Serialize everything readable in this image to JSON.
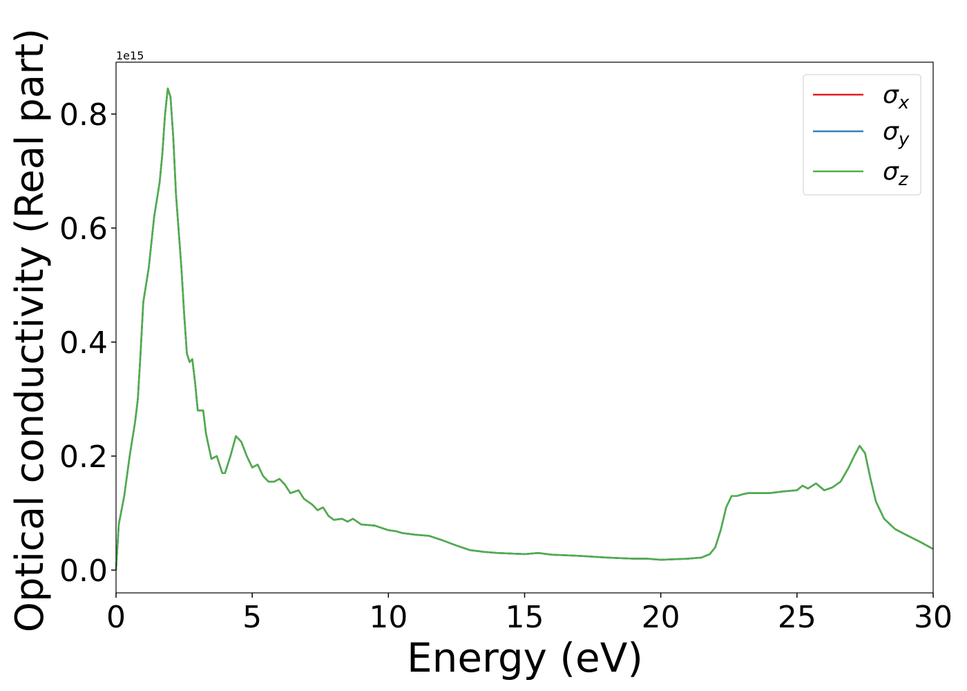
{
  "chart_data": {
    "type": "line",
    "xlabel": "Energy (eV)",
    "ylabel": "Optical conductivity (Real part)",
    "y_offset_label": "1e15",
    "x": [
      0,
      0.1,
      0.3,
      0.5,
      0.7,
      0.8,
      0.9,
      1.0,
      1.2,
      1.4,
      1.6,
      1.7,
      1.8,
      1.9,
      2.0,
      2.1,
      2.2,
      2.4,
      2.5,
      2.6,
      2.7,
      2.8,
      2.9,
      3.0,
      3.2,
      3.3,
      3.5,
      3.7,
      3.9,
      4.0,
      4.2,
      4.4,
      4.6,
      4.8,
      5.0,
      5.2,
      5.4,
      5.6,
      5.8,
      6.0,
      6.2,
      6.4,
      6.7,
      6.9,
      7.2,
      7.4,
      7.6,
      7.8,
      8.0,
      8.3,
      8.5,
      8.7,
      9.0,
      9.5,
      10.0,
      10.3,
      10.5,
      11.0,
      11.5,
      12.0,
      12.5,
      13.0,
      13.5,
      14,
      15,
      15.5,
      16,
      17,
      18,
      19,
      19.5,
      20,
      21,
      21.5,
      21.8,
      22.0,
      22.2,
      22.4,
      22.6,
      22.8,
      23.0,
      23.2,
      23.5,
      24,
      24.5,
      25,
      25.2,
      25.4,
      25.7,
      26.0,
      26.3,
      26.6,
      26.9,
      27.1,
      27.3,
      27.5,
      27.7,
      27.9,
      28.2,
      28.6,
      29.0,
      29.5,
      30.0
    ],
    "series": [
      {
        "name": "σx",
        "color": "#e41a1c",
        "values": [
          0.0,
          0.08,
          0.13,
          0.2,
          0.26,
          0.3,
          0.38,
          0.47,
          0.53,
          0.62,
          0.68,
          0.73,
          0.8,
          0.845,
          0.83,
          0.76,
          0.66,
          0.53,
          0.45,
          0.38,
          0.365,
          0.37,
          0.33,
          0.28,
          0.28,
          0.24,
          0.195,
          0.2,
          0.17,
          0.17,
          0.2,
          0.235,
          0.225,
          0.2,
          0.18,
          0.185,
          0.165,
          0.155,
          0.155,
          0.16,
          0.15,
          0.135,
          0.14,
          0.125,
          0.115,
          0.105,
          0.11,
          0.095,
          0.088,
          0.09,
          0.085,
          0.09,
          0.08,
          0.078,
          0.07,
          0.068,
          0.065,
          0.062,
          0.06,
          0.052,
          0.043,
          0.035,
          0.032,
          0.03,
          0.028,
          0.03,
          0.027,
          0.025,
          0.022,
          0.02,
          0.02,
          0.018,
          0.02,
          0.022,
          0.028,
          0.04,
          0.07,
          0.11,
          0.13,
          0.13,
          0.133,
          0.135,
          0.135,
          0.135,
          0.138,
          0.14,
          0.148,
          0.143,
          0.152,
          0.14,
          0.145,
          0.155,
          0.18,
          0.2,
          0.218,
          0.205,
          0.16,
          0.12,
          0.09,
          0.072,
          0.062,
          0.05,
          0.037
        ]
      },
      {
        "name": "σy",
        "color": "#377eb8",
        "values": [
          0.0,
          0.08,
          0.13,
          0.2,
          0.26,
          0.3,
          0.38,
          0.47,
          0.53,
          0.62,
          0.68,
          0.73,
          0.8,
          0.845,
          0.83,
          0.76,
          0.66,
          0.53,
          0.45,
          0.38,
          0.365,
          0.37,
          0.33,
          0.28,
          0.28,
          0.24,
          0.195,
          0.2,
          0.17,
          0.17,
          0.2,
          0.235,
          0.225,
          0.2,
          0.18,
          0.185,
          0.165,
          0.155,
          0.155,
          0.16,
          0.15,
          0.135,
          0.14,
          0.125,
          0.115,
          0.105,
          0.11,
          0.095,
          0.088,
          0.09,
          0.085,
          0.09,
          0.08,
          0.078,
          0.07,
          0.068,
          0.065,
          0.062,
          0.06,
          0.052,
          0.043,
          0.035,
          0.032,
          0.03,
          0.028,
          0.03,
          0.027,
          0.025,
          0.022,
          0.02,
          0.02,
          0.018,
          0.02,
          0.022,
          0.028,
          0.04,
          0.07,
          0.11,
          0.13,
          0.13,
          0.133,
          0.135,
          0.135,
          0.135,
          0.138,
          0.14,
          0.148,
          0.143,
          0.152,
          0.14,
          0.145,
          0.155,
          0.18,
          0.2,
          0.218,
          0.205,
          0.16,
          0.12,
          0.09,
          0.072,
          0.062,
          0.05,
          0.037
        ]
      },
      {
        "name": "σz",
        "color": "#4daf4a",
        "values": [
          0.0,
          0.08,
          0.13,
          0.2,
          0.26,
          0.3,
          0.38,
          0.47,
          0.53,
          0.62,
          0.68,
          0.73,
          0.8,
          0.845,
          0.83,
          0.76,
          0.66,
          0.53,
          0.45,
          0.38,
          0.365,
          0.37,
          0.33,
          0.28,
          0.28,
          0.24,
          0.195,
          0.2,
          0.17,
          0.17,
          0.2,
          0.235,
          0.225,
          0.2,
          0.18,
          0.185,
          0.165,
          0.155,
          0.155,
          0.16,
          0.15,
          0.135,
          0.14,
          0.125,
          0.115,
          0.105,
          0.11,
          0.095,
          0.088,
          0.09,
          0.085,
          0.09,
          0.08,
          0.078,
          0.07,
          0.068,
          0.065,
          0.062,
          0.06,
          0.052,
          0.043,
          0.035,
          0.032,
          0.03,
          0.028,
          0.03,
          0.027,
          0.025,
          0.022,
          0.02,
          0.02,
          0.018,
          0.02,
          0.022,
          0.028,
          0.04,
          0.07,
          0.11,
          0.13,
          0.13,
          0.133,
          0.135,
          0.135,
          0.135,
          0.138,
          0.14,
          0.148,
          0.143,
          0.152,
          0.14,
          0.145,
          0.155,
          0.18,
          0.2,
          0.218,
          0.205,
          0.16,
          0.12,
          0.09,
          0.072,
          0.062,
          0.05,
          0.037
        ]
      }
    ],
    "xlim": [
      0,
      30
    ],
    "xticks": [
      0,
      5,
      10,
      15,
      20,
      25,
      30
    ],
    "ylim": [
      -0.04,
      0.891
    ],
    "yticks": [
      {
        "value": 0,
        "label": "0.0"
      },
      0.2,
      0.4,
      0.6,
      0.8
    ],
    "legend": "upper right"
  }
}
